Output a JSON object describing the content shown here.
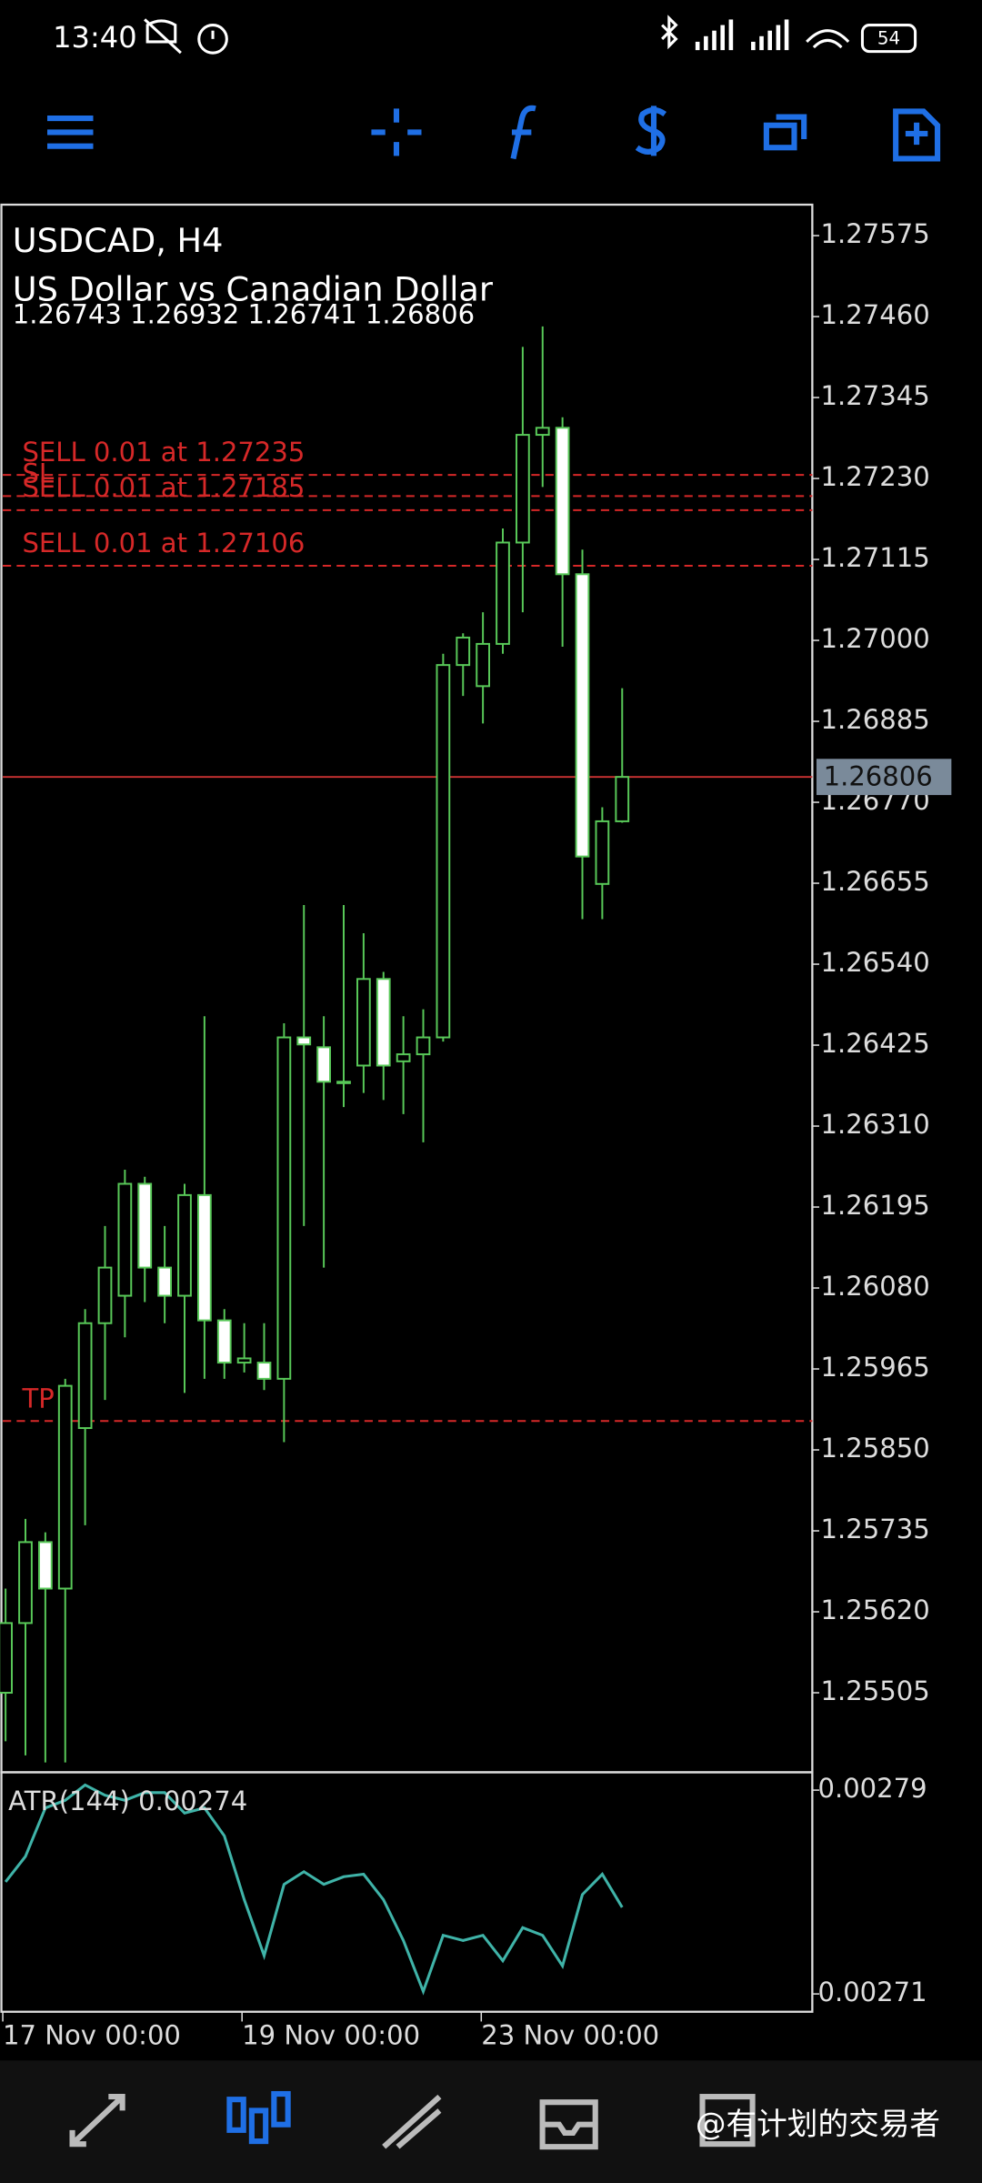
{
  "status_bar": {
    "time": "13:40",
    "battery": "54"
  },
  "chart_data": {
    "type": "candlestick",
    "symbol": "USDCAD, H4",
    "description": "US Dollar vs Canadian Dollar",
    "ohlc_line": "1.26743 1.26932 1.26741 1.26806",
    "open": [
      1.25505,
      1.25604,
      1.25719,
      1.25653,
      1.25881,
      1.2603,
      1.26069,
      1.26228,
      1.26109,
      1.26069,
      1.26212,
      1.26034,
      1.25974,
      1.25974,
      1.25951,
      1.26436,
      1.26422,
      1.26373,
      1.26396,
      1.26519,
      1.26402,
      1.26412,
      1.26436,
      1.26965,
      1.26935,
      1.26995,
      1.27139,
      1.27292,
      1.27302,
      1.27094,
      1.26654,
      1.26743
    ],
    "high": [
      1.25653,
      1.25752,
      1.25733,
      1.25951,
      1.2605,
      1.26168,
      1.26248,
      1.26238,
      1.26168,
      1.26228,
      1.26466,
      1.2605,
      1.2603,
      1.2603,
      1.26456,
      1.26624,
      1.26466,
      1.26624,
      1.26584,
      1.26529,
      1.26466,
      1.26476,
      1.26981,
      1.2701,
      1.2704,
      1.27159,
      1.27417,
      1.27446,
      1.27317,
      1.27129,
      1.26763,
      1.26932
    ],
    "low": [
      1.25436,
      1.25416,
      1.25406,
      1.25406,
      1.25743,
      1.25921,
      1.2601,
      1.2606,
      1.2603,
      1.25931,
      1.25951,
      1.25951,
      1.2596,
      1.25935,
      1.25861,
      1.26168,
      1.26109,
      1.26337,
      1.26357,
      1.26347,
      1.26327,
      1.26287,
      1.2643,
      1.26921,
      1.26882,
      1.26981,
      1.2704,
      1.27218,
      1.26991,
      1.26604,
      1.26604,
      1.26741
    ],
    "close": [
      1.25604,
      1.25719,
      1.25653,
      1.25941,
      1.2603,
      1.26109,
      1.26228,
      1.26109,
      1.26069,
      1.26212,
      1.26034,
      1.25974,
      1.2598,
      1.25951,
      1.26436,
      1.26426,
      1.26373,
      1.26373,
      1.26519,
      1.26396,
      1.26412,
      1.26436,
      1.26965,
      1.27004,
      1.26995,
      1.27139,
      1.27292,
      1.27302,
      1.27094,
      1.26693,
      1.26743,
      1.26806
    ],
    "ylim": [
      1.25392,
      1.27619
    ],
    "yticks": [
      1.27575,
      {
        "value": 1.2746,
        "label": "1.27460"
      },
      1.27345,
      {
        "value": 1.2723,
        "label": "1.27230"
      },
      1.27115,
      {
        "value": 1.27,
        "label": "1.27000"
      },
      1.26885,
      {
        "value": 1.2677,
        "label": "1.26770"
      },
      1.26655,
      {
        "value": 1.2654,
        "label": "1.26540"
      },
      1.26425,
      {
        "value": 1.2631,
        "label": "1.26310"
      },
      1.26195,
      {
        "value": 1.2608,
        "label": "1.26080"
      },
      1.25965,
      {
        "value": 1.2585,
        "label": "1.25850"
      },
      1.25735,
      {
        "value": 1.2562,
        "label": "1.25620"
      },
      1.25505
    ],
    "current_price": 1.26806,
    "orders": [
      {
        "label": "SELL 0.01 at 1.27235",
        "price": 1.27235
      },
      {
        "label": "SELL 0.01 at 1.27185",
        "price": 1.27185
      },
      {
        "label": "SELL 0.01 at 1.27106",
        "price": 1.27106
      }
    ],
    "sl": {
      "label": "SL",
      "price": 1.27205
    },
    "tp": {
      "label": "TP",
      "price": 1.25891
    },
    "time_labels": [
      "17 Nov 00:00",
      "19 Nov 00:00",
      "23 Nov 00:00"
    ],
    "atr": {
      "label": "ATR(144) 0.00274",
      "ylim": [
        0.002703,
        0.002797
      ],
      "yticks": [
        0.00279,
        0.00271
      ],
      "values": [
        0.002754,
        0.002764,
        0.002783,
        0.002786,
        0.002792,
        0.002788,
        0.002786,
        0.002789,
        0.002789,
        0.002781,
        0.002783,
        0.002772,
        0.002747,
        0.002725,
        0.002753,
        0.002758,
        0.002753,
        0.002756,
        0.002757,
        0.002747,
        0.002731,
        0.002711,
        0.002733,
        0.002731,
        0.002733,
        0.002723,
        0.002736,
        0.002733,
        0.002721,
        0.002749,
        0.002757,
        0.002744
      ]
    }
  },
  "watermark": "@有计划的交易者"
}
